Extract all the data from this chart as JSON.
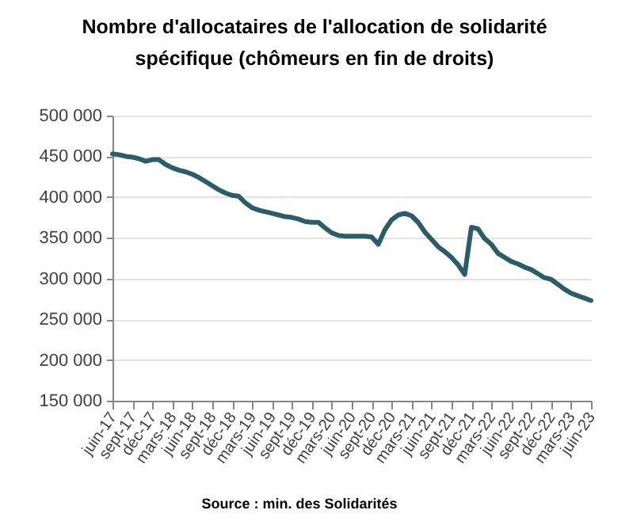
{
  "chart_data": {
    "type": "line",
    "title": "Nombre d'allocataires de l'allocation de solidarité spécifique (chômeurs en fin de droits)",
    "annotations": [
      "Source : min. des Solidarités"
    ],
    "categories": [
      "juin-17",
      null,
      null,
      "sept-17",
      null,
      null,
      "déc-17",
      null,
      null,
      "mars-18",
      null,
      null,
      "juin-18",
      null,
      null,
      "sept-18",
      null,
      null,
      "déc-18",
      null,
      null,
      "mars-19",
      null,
      null,
      "juin-19",
      null,
      null,
      "sept-19",
      null,
      null,
      "déc-19",
      null,
      null,
      "mars-20",
      null,
      null,
      "juin-20",
      null,
      null,
      "sept-20",
      null,
      null,
      "déc-20",
      null,
      null,
      "mars-21",
      null,
      null,
      "juin-21",
      null,
      null,
      "sept-21",
      null,
      null,
      "déc-21",
      null,
      null,
      "mars-22",
      null,
      null,
      "juin-22",
      null,
      null,
      "sept-22",
      null,
      null,
      "déc-22",
      null,
      null,
      "mars-23",
      null,
      null,
      "juin-23"
    ],
    "values": [
      453000,
      452000,
      450000,
      449000,
      447000,
      444000,
      446000,
      446000,
      440000,
      436000,
      433000,
      431000,
      428000,
      424000,
      419000,
      414000,
      409000,
      405000,
      402000,
      401000,
      393000,
      387000,
      384000,
      382000,
      380000,
      378000,
      376000,
      375000,
      373000,
      370000,
      369000,
      369000,
      362000,
      356000,
      353000,
      352000,
      352000,
      352000,
      352000,
      351000,
      342000,
      360000,
      372000,
      378000,
      380000,
      377000,
      369000,
      357000,
      348000,
      339000,
      333000,
      326000,
      317000,
      305000,
      363000,
      361000,
      349000,
      342000,
      331000,
      326000,
      321000,
      318000,
      314000,
      311000,
      306000,
      301000,
      299000,
      293000,
      287000,
      282000,
      279000,
      276000,
      273000
    ],
    "color": "#2b5c6a",
    "ylim": [
      150000,
      500000
    ],
    "yticks": [
      {
        "value": 150000,
        "label": "150 000"
      },
      {
        "value": 200000,
        "label": "200 000"
      },
      {
        "value": 250000,
        "label": "250 000"
      },
      {
        "value": 300000,
        "label": "300 000"
      },
      {
        "value": 350000,
        "label": "350 000"
      },
      {
        "value": 400000,
        "label": "400 000"
      },
      {
        "value": 450000,
        "label": "450 000"
      },
      {
        "value": 500000,
        "label": "500 000"
      }
    ],
    "grid": "y"
  }
}
